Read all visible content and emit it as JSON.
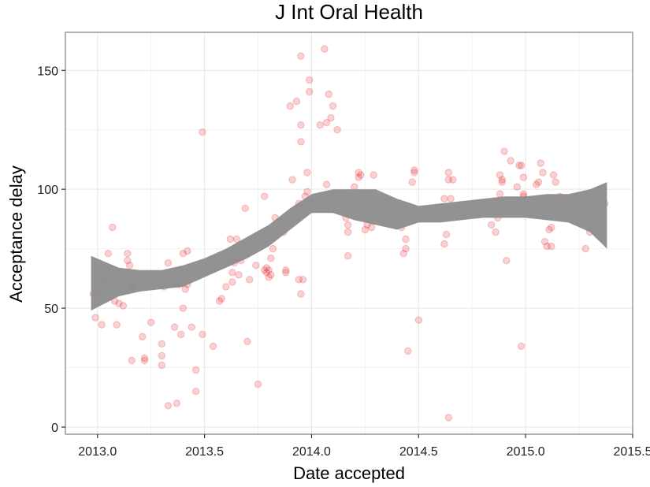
{
  "chart_data": {
    "type": "scatter",
    "title": "J Int Oral Health",
    "xlabel": "Date accepted",
    "ylabel": "Acceptance delay",
    "xlim": [
      2012.85,
      2015.5
    ],
    "ylim": [
      -3,
      166
    ],
    "x_ticks": [
      2013.0,
      2013.5,
      2014.0,
      2014.5,
      2015.0,
      2015.5
    ],
    "x_tick_labels": [
      "2013.0",
      "2013.5",
      "2014.0",
      "2014.5",
      "2015.0",
      "2015.5"
    ],
    "y_ticks": [
      0,
      50,
      100,
      150
    ],
    "y_tick_labels": [
      "0",
      "50",
      "100",
      "150"
    ],
    "grid": true,
    "point_color": "#e41a1c",
    "band_color": "#8c8c8c",
    "points": [
      [
        2012.98,
        56
      ],
      [
        2012.99,
        46
      ],
      [
        2013.01,
        56
      ],
      [
        2013.02,
        43
      ],
      [
        2013.03,
        62
      ],
      [
        2013.04,
        66
      ],
      [
        2013.05,
        73
      ],
      [
        2013.07,
        84
      ],
      [
        2013.08,
        53
      ],
      [
        2013.09,
        43
      ],
      [
        2013.1,
        52
      ],
      [
        2013.11,
        62
      ],
      [
        2013.12,
        51
      ],
      [
        2013.14,
        73
      ],
      [
        2013.14,
        70
      ],
      [
        2013.15,
        68
      ],
      [
        2013.15,
        65
      ],
      [
        2013.16,
        60
      ],
      [
        2013.16,
        28
      ],
      [
        2013.17,
        59
      ],
      [
        2013.21,
        38
      ],
      [
        2013.22,
        28
      ],
      [
        2013.22,
        29
      ],
      [
        2013.25,
        44
      ],
      [
        2013.3,
        35
      ],
      [
        2013.3,
        30
      ],
      [
        2013.3,
        26
      ],
      [
        2013.31,
        59
      ],
      [
        2013.33,
        9
      ],
      [
        2013.33,
        69
      ],
      [
        2013.35,
        60
      ],
      [
        2013.36,
        42
      ],
      [
        2013.37,
        10
      ],
      [
        2013.38,
        60
      ],
      [
        2013.39,
        39
      ],
      [
        2013.4,
        50
      ],
      [
        2013.4,
        73
      ],
      [
        2013.41,
        58
      ],
      [
        2013.42,
        74
      ],
      [
        2013.42,
        60
      ],
      [
        2013.44,
        42
      ],
      [
        2013.46,
        24
      ],
      [
        2013.46,
        15
      ],
      [
        2013.49,
        39
      ],
      [
        2013.49,
        124
      ],
      [
        2013.54,
        34
      ],
      [
        2013.57,
        53
      ],
      [
        2013.58,
        54
      ],
      [
        2013.6,
        59
      ],
      [
        2013.61,
        70
      ],
      [
        2013.62,
        79
      ],
      [
        2013.63,
        65
      ],
      [
        2013.63,
        61
      ],
      [
        2013.64,
        69
      ],
      [
        2013.65,
        79
      ],
      [
        2013.65,
        71
      ],
      [
        2013.66,
        64
      ],
      [
        2013.67,
        70
      ],
      [
        2013.69,
        92
      ],
      [
        2013.7,
        36
      ],
      [
        2013.71,
        62
      ],
      [
        2013.74,
        68
      ],
      [
        2013.75,
        18
      ],
      [
        2013.78,
        97
      ],
      [
        2013.78,
        66
      ],
      [
        2013.79,
        65
      ],
      [
        2013.79,
        67
      ],
      [
        2013.8,
        63
      ],
      [
        2013.8,
        66
      ],
      [
        2013.81,
        64
      ],
      [
        2013.81,
        71
      ],
      [
        2013.82,
        75
      ],
      [
        2013.83,
        88
      ],
      [
        2013.86,
        86
      ],
      [
        2013.87,
        82
      ],
      [
        2013.88,
        65
      ],
      [
        2013.88,
        66
      ],
      [
        2013.9,
        135
      ],
      [
        2013.91,
        104
      ],
      [
        2013.93,
        137
      ],
      [
        2013.94,
        62
      ],
      [
        2013.94,
        94
      ],
      [
        2013.95,
        120
      ],
      [
        2013.95,
        127
      ],
      [
        2013.95,
        56
      ],
      [
        2013.95,
        156
      ],
      [
        2013.96,
        62
      ],
      [
        2013.97,
        97
      ],
      [
        2013.98,
        99
      ],
      [
        2013.98,
        107
      ],
      [
        2013.99,
        141
      ],
      [
        2013.99,
        146
      ],
      [
        2014.0,
        95
      ],
      [
        2014.04,
        127
      ],
      [
        2014.04,
        93
      ],
      [
        2014.06,
        159
      ],
      [
        2014.06,
        97
      ],
      [
        2014.07,
        102
      ],
      [
        2014.07,
        128
      ],
      [
        2014.08,
        140
      ],
      [
        2014.09,
        130
      ],
      [
        2014.1,
        135
      ],
      [
        2014.12,
        125
      ],
      [
        2014.16,
        88
      ],
      [
        2014.17,
        72
      ],
      [
        2014.17,
        82
      ],
      [
        2014.17,
        85
      ],
      [
        2014.2,
        101
      ],
      [
        2014.22,
        107
      ],
      [
        2014.22,
        105
      ],
      [
        2014.23,
        106
      ],
      [
        2014.24,
        98
      ],
      [
        2014.25,
        83
      ],
      [
        2014.26,
        85
      ],
      [
        2014.27,
        91
      ],
      [
        2014.28,
        84
      ],
      [
        2014.29,
        106
      ],
      [
        2014.42,
        84
      ],
      [
        2014.43,
        73
      ],
      [
        2014.43,
        92
      ],
      [
        2014.44,
        75
      ],
      [
        2014.44,
        79
      ],
      [
        2014.45,
        32
      ],
      [
        2014.45,
        93
      ],
      [
        2014.47,
        103
      ],
      [
        2014.48,
        107
      ],
      [
        2014.48,
        108
      ],
      [
        2014.5,
        45
      ],
      [
        2014.62,
        96
      ],
      [
        2014.62,
        77
      ],
      [
        2014.63,
        81
      ],
      [
        2014.64,
        104
      ],
      [
        2014.64,
        4
      ],
      [
        2014.64,
        107
      ],
      [
        2014.65,
        96
      ],
      [
        2014.66,
        104
      ],
      [
        2014.84,
        90
      ],
      [
        2014.84,
        85
      ],
      [
        2014.86,
        82
      ],
      [
        2014.87,
        88
      ],
      [
        2014.88,
        106
      ],
      [
        2014.88,
        98
      ],
      [
        2014.89,
        104
      ],
      [
        2014.89,
        103
      ],
      [
        2014.9,
        116
      ],
      [
        2014.91,
        70
      ],
      [
        2014.93,
        112
      ],
      [
        2014.96,
        101
      ],
      [
        2014.97,
        95
      ],
      [
        2014.97,
        110
      ],
      [
        2014.98,
        110
      ],
      [
        2014.98,
        34
      ],
      [
        2014.99,
        97
      ],
      [
        2014.99,
        98
      ],
      [
        2014.99,
        105
      ],
      [
        2015.05,
        102
      ],
      [
        2015.06,
        103
      ],
      [
        2015.07,
        111
      ],
      [
        2015.08,
        107
      ],
      [
        2015.09,
        78
      ],
      [
        2015.1,
        76
      ],
      [
        2015.11,
        83
      ],
      [
        2015.12,
        84
      ],
      [
        2015.12,
        76
      ],
      [
        2015.13,
        106
      ],
      [
        2015.14,
        103
      ],
      [
        2015.16,
        97
      ],
      [
        2015.28,
        75
      ],
      [
        2015.29,
        87
      ],
      [
        2015.3,
        82
      ],
      [
        2015.35,
        82
      ],
      [
        2015.37,
        94
      ]
    ],
    "smooth_band": {
      "x": [
        2012.97,
        2013.1,
        2013.2,
        2013.3,
        2013.4,
        2013.5,
        2013.6,
        2013.7,
        2013.8,
        2013.9,
        2014.0,
        2014.1,
        2014.2,
        2014.3,
        2014.4,
        2014.5,
        2014.6,
        2014.7,
        2014.8,
        2014.9,
        2015.0,
        2015.1,
        2015.2,
        2015.3,
        2015.38
      ],
      "upper": [
        72,
        67,
        66,
        66,
        68,
        71,
        75,
        80,
        85,
        92,
        98,
        100,
        100,
        100,
        96,
        93,
        94,
        95,
        96,
        97,
        97,
        98,
        98,
        100,
        103
      ],
      "lower": [
        49,
        55,
        57,
        58,
        59,
        63,
        67,
        71,
        76,
        83,
        90,
        90,
        87,
        85,
        83,
        86,
        86,
        87,
        88,
        88,
        88,
        87,
        86,
        82,
        75
      ]
    }
  }
}
